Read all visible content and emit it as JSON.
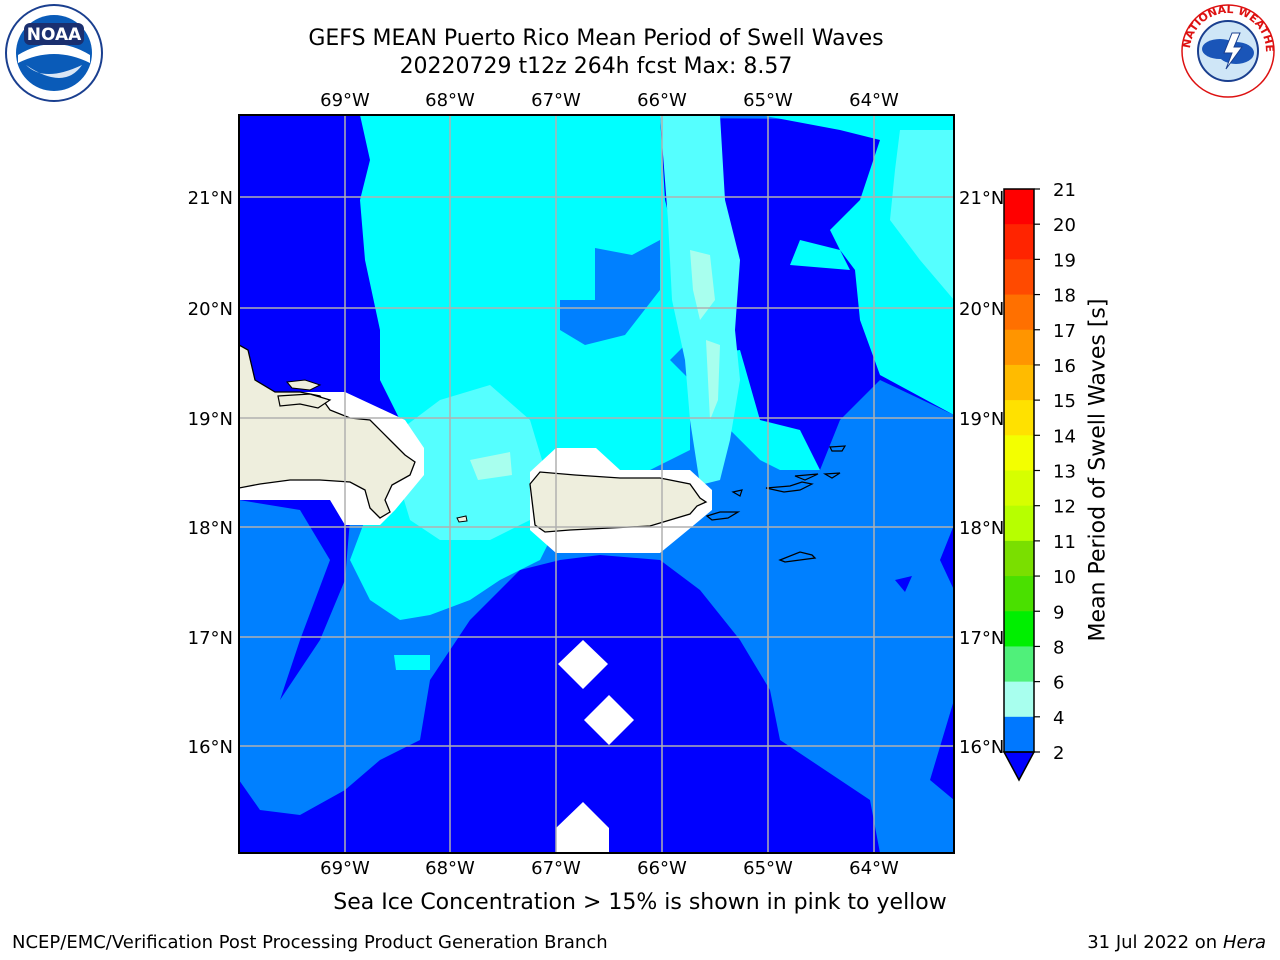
{
  "title": {
    "line1": "GEFS MEAN Puerto Rico Mean Period of Swell Waves",
    "line2": "20220729 t12z 264h fcst   Max: 8.57"
  },
  "map": {
    "lon_labels": [
      "69°W",
      "68°W",
      "67°W",
      "66°W",
      "65°W",
      "64°W"
    ],
    "lat_labels": [
      "21°N",
      "20°N",
      "19°N",
      "18°N",
      "17°N",
      "16°N"
    ],
    "lon_range": [
      -70.0,
      -63.3
    ],
    "lat_range": [
      15.0,
      21.75
    ],
    "land_color": "#eeeedd",
    "gridline_color": "#b0b0b0"
  },
  "colorbar": {
    "label": "Mean Period of Swell Waves [s]",
    "ticks": [
      "21",
      "20",
      "19",
      "18",
      "17",
      "16",
      "15",
      "14",
      "13",
      "12",
      "11",
      "10",
      "9",
      "8",
      "6",
      "4",
      "2"
    ],
    "colors": [
      "#ff0000",
      "#ff2400",
      "#ff4a00",
      "#ff7000",
      "#ff9500",
      "#ffbb00",
      "#ffe100",
      "#f3ff00",
      "#d6ff00",
      "#b7ff00",
      "#7adf00",
      "#4ae000",
      "#00ef00",
      "#50f07a",
      "#a8ffee",
      "#55ffff",
      "#00ffff",
      "#0078ff",
      "#0000ff"
    ],
    "extend_color": "#0000ff"
  },
  "legend_levels": [
    {
      "range": "2-4",
      "color": "#0000ff"
    },
    {
      "range": "4-6",
      "color": "#0080ff"
    },
    {
      "range": "6-8",
      "color": "#00ffff"
    },
    {
      "range": "8-9",
      "color": "#55ffff"
    },
    {
      "range": "9+",
      "color": "#a8ffee"
    }
  ],
  "caption": "Sea Ice Concentration > 15% is shown in pink to yellow",
  "footer": {
    "left": "NCEP/EMC/Verification Post Processing Product Generation Branch",
    "right_date": "31 Jul 2022 on ",
    "right_host": "Hera"
  },
  "logos": {
    "noaa_text": "NOAA",
    "nws_text": "NATIONAL WEATHER SERVICE"
  }
}
